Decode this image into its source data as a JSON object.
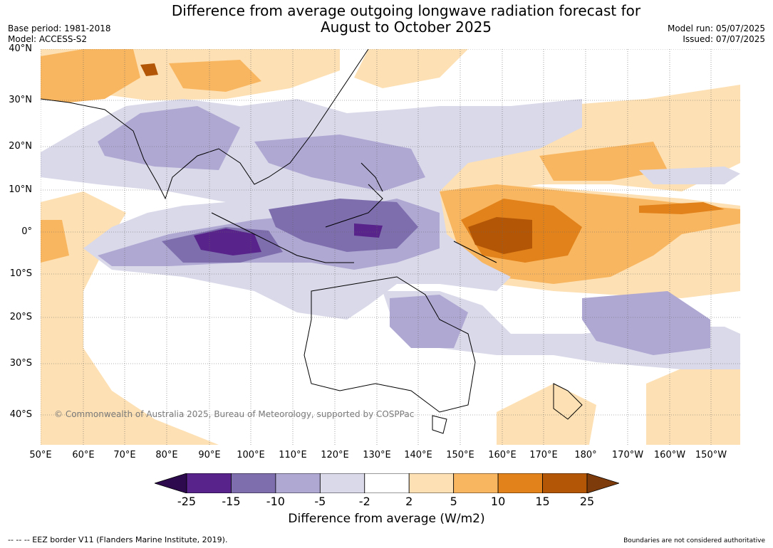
{
  "title_line1": "Difference from average outgoing longwave radiation forecast for",
  "title_line2": "August to October 2025",
  "base_period": "Base period: 1981-2018",
  "model": "Model: ACCESS-S2",
  "model_run": "Model run: 05/07/2025",
  "issued": "Issued: 07/07/2025",
  "lat_labels": [
    "40°N",
    "30°N",
    "20°N",
    "10°N",
    "0°",
    "10°S",
    "20°S",
    "30°S",
    "40°S"
  ],
  "lon_labels": [
    "50°E",
    "60°E",
    "70°E",
    "80°E",
    "90°E",
    "100°E",
    "110°E",
    "120°E",
    "130°E",
    "140°E",
    "150°E",
    "160°E",
    "170°E",
    "180°",
    "170°W",
    "160°W",
    "150°W"
  ],
  "copyright": "© Commonwealth of Australia 2025, Bureau of Meteorology, supported by COSPPac",
  "colorbar": {
    "labels": [
      "-25",
      "-15",
      "-10",
      "-5",
      "-2",
      "2",
      "5",
      "10",
      "15",
      "25"
    ],
    "colors": [
      "#2d0a4e",
      "#58238a",
      "#7e6eae",
      "#afa8d2",
      "#d9d9ea",
      "#ffffff",
      "#fde0b3",
      "#f9b660",
      "#e2821b",
      "#b35707",
      "#7d3b0b"
    ],
    "title": "Difference from average (W/m2)"
  },
  "footer_left": "--  --  -- EEZ border V11 (Flanders Marine Institute, 2019).",
  "footer_right": "Boundaries are not considered authoritative"
}
